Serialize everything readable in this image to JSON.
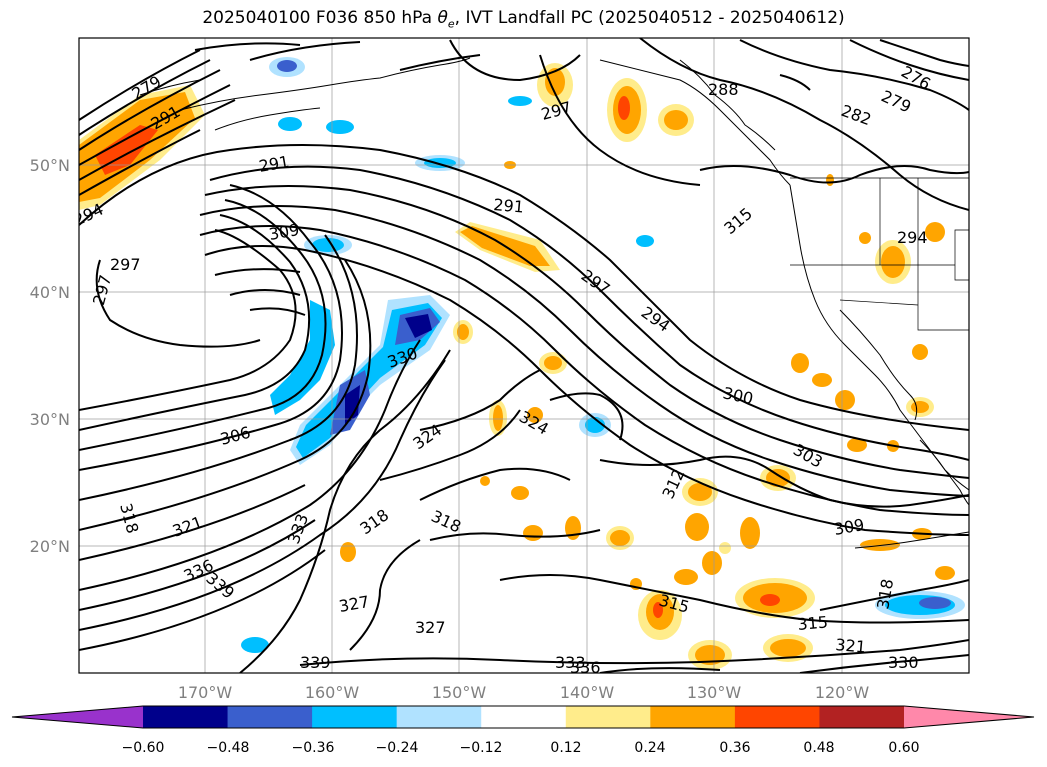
{
  "title": {
    "prefix": "2025040100 F036 850 hPa ",
    "theta_base": "θ",
    "theta_sub": "e",
    "suffix": ", IVT Landfall PC (2025040512 - 2025040612)"
  },
  "axes": {
    "x_ticks": [
      "170°W",
      "160°W",
      "150°W",
      "140°W",
      "130°W",
      "120°W"
    ],
    "y_ticks": [
      "50°N",
      "40°N",
      "30°N",
      "20°N"
    ]
  },
  "contour_labels": [
    {
      "text": "279"
    },
    {
      "text": "291"
    },
    {
      "text": "294"
    },
    {
      "text": "297"
    },
    {
      "text": "297"
    },
    {
      "text": "309"
    },
    {
      "text": "291"
    },
    {
      "text": "297"
    },
    {
      "text": "288"
    },
    {
      "text": "276"
    },
    {
      "text": "279"
    },
    {
      "text": "282"
    },
    {
      "text": "291"
    },
    {
      "text": "294"
    },
    {
      "text": "297"
    },
    {
      "text": "294"
    },
    {
      "text": "330"
    },
    {
      "text": "306"
    },
    {
      "text": "324"
    },
    {
      "text": "324"
    },
    {
      "text": "300"
    },
    {
      "text": "303"
    },
    {
      "text": "312"
    },
    {
      "text": "318"
    },
    {
      "text": "321"
    },
    {
      "text": "336"
    },
    {
      "text": "339"
    },
    {
      "text": "333"
    },
    {
      "text": "318"
    },
    {
      "text": "318"
    },
    {
      "text": "309"
    },
    {
      "text": "327"
    },
    {
      "text": "327"
    },
    {
      "text": "315"
    },
    {
      "text": "315"
    },
    {
      "text": "321"
    },
    {
      "text": "339"
    },
    {
      "text": "333"
    },
    {
      "text": "336"
    },
    {
      "text": "330"
    },
    {
      "text": "318"
    },
    {
      "text": "315"
    }
  ],
  "colorbar": {
    "ticks": [
      "−0.60",
      "−0.48",
      "−0.36",
      "−0.24",
      "−0.12",
      "0.12",
      "0.24",
      "0.36",
      "0.48",
      "0.60"
    ],
    "colors": [
      "#9932cc",
      "#00008b",
      "#3a5fcd",
      "#00bfff",
      "#b0e2ff",
      "#ffffff",
      "#ffec8b",
      "#ffa500",
      "#ff4500",
      "#b22222",
      "#ff88aa"
    ]
  },
  "field_colors": {
    "neg_light": "#b0e2ff",
    "neg_mid": "#00bfff",
    "neg_strong": "#3a5fcd",
    "neg_max": "#00008b",
    "pos_light": "#ffec8b",
    "pos_mid": "#ffa500",
    "pos_strong": "#ff4500"
  }
}
